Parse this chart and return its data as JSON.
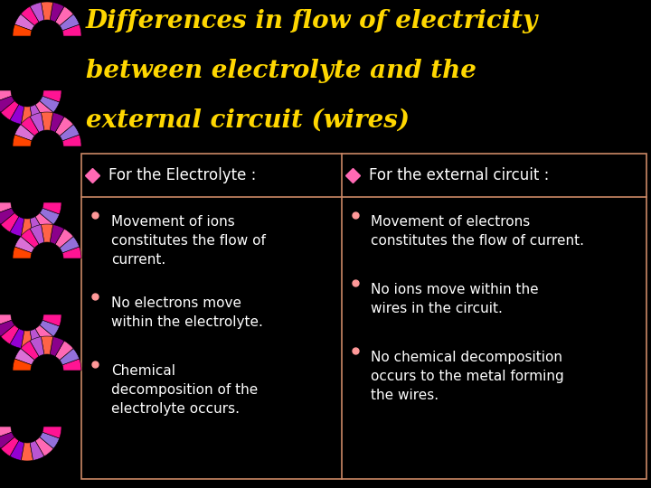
{
  "background_color": "#000000",
  "title_line1": "Differences in flow of electricity",
  "title_line2": "between electrolyte and the",
  "title_line3": "external circuit (wires)",
  "title_color": "#FFD700",
  "title_fontsize": 20,
  "header_left": "For the Electrolyte :",
  "header_right": "For the external circuit :",
  "header_color": "#FFFFFF",
  "header_fontsize": 12,
  "diamond_color": "#FF69B4",
  "bullet_color": "#FF9999",
  "body_color": "#FFFFFF",
  "body_fontsize": 11,
  "box_edgecolor": "#CC8866",
  "left_bullets": [
    "Movement of ions\nconstitutes the flow of\ncurrent.",
    "No electrons move\nwithin the electrolyte.",
    "Chemical\ndecomposition of the\nelectrolyte occurs."
  ],
  "right_bullets": [
    "Movement of electrons\nconstitutes the flow of current.",
    "No ions move within the\nwires in the circuit.",
    "No chemical decomposition\noccurs to the metal forming\nthe wires."
  ],
  "divider_color": "#CC8866",
  "spiral_colors_1": [
    "#FF1493",
    "#9370DB",
    "#FF69B4",
    "#8B008B",
    "#FF6347",
    "#BA55D3"
  ],
  "figsize": [
    7.2,
    5.4
  ],
  "dpi": 100
}
